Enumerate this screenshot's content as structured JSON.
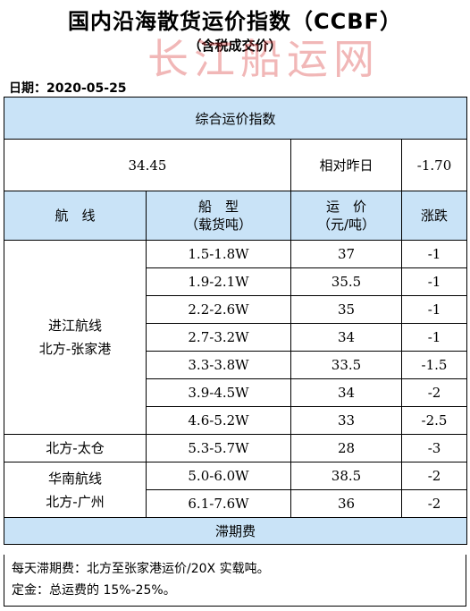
{
  "title": "国内沿海散货运价指数（CCBF）",
  "subtitle": "（含税成交价）",
  "watermark": "长江船运网",
  "date": "日期：2020-05-25",
  "composite": {
    "label": "综合运价指数",
    "value": "34.45",
    "change_label": "相对昨日",
    "change_value": "-1.70"
  },
  "headers": {
    "route": "航　线",
    "ship_type_line1": "船　型",
    "ship_type_line2": "（载货吨）",
    "price_line1": "运　价",
    "price_line2": "（元/吨）",
    "change": "涨跌"
  },
  "rows": [
    {
      "ship": "1.5-1.8W",
      "price": "37",
      "change": "-1"
    },
    {
      "ship": "1.9-2.1W",
      "price": "35.5",
      "change": "-1"
    },
    {
      "ship": "2.2-2.6W",
      "price": "35",
      "change": "-1"
    },
    {
      "ship": "2.7-3.2W",
      "price": "34",
      "change": "-1"
    },
    {
      "ship": "3.3-3.8W",
      "price": "33.5",
      "change": "-1.5"
    },
    {
      "ship": "3.9-4.5W",
      "price": "34",
      "change": "-2"
    },
    {
      "ship": "4.6-5.2W",
      "price": "33",
      "change": "-2.5"
    },
    {
      "ship": "5.3-5.7W",
      "price": "28",
      "change": "-3"
    },
    {
      "ship": "5.0-6.0W",
      "price": "38.5",
      "change": "-2"
    },
    {
      "ship": "6.1-7.6W",
      "price": "36",
      "change": "-2"
    }
  ],
  "routes": [
    {
      "line1": "进江航线",
      "line2": "北方-张家港"
    },
    {
      "line1": "北方-太仓"
    },
    {
      "line1": "华南航线",
      "line2": "北方-广州"
    }
  ],
  "demurrage": {
    "label": "滞期费",
    "note1": "每天滞期费：北方至张家港运价/20X 实载吨。",
    "note2": "定金：总运费的 15%-25%。"
  },
  "colors": {
    "header_band": "#c9e3f7",
    "watermark": "#d63232"
  }
}
